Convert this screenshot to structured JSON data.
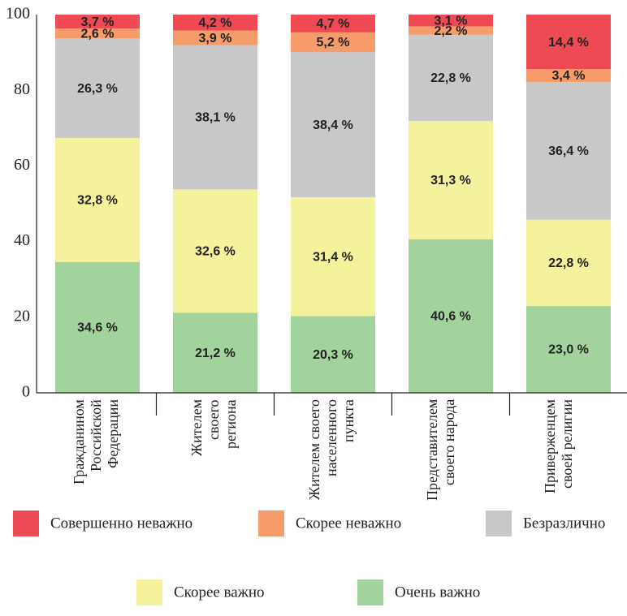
{
  "chart_data": {
    "type": "stacked_bar",
    "categories": [
      "Гражданином\nРоссийской\nФедерации",
      "Жителем\nсвоего\nрегиона",
      "Жителем своего\nнаселенного\nпункта",
      "Представителем\nсвоего народа",
      "Приверженцем\nсвоей религии"
    ],
    "series": [
      {
        "name": "Очень важно",
        "color": "#a3d39c",
        "values": [
          34.6,
          21.2,
          20.3,
          40.6,
          23.0
        ],
        "value_labels": [
          "34,6 %",
          "21,2 %",
          "20,3 %",
          "40,6 %",
          "23,0 %"
        ]
      },
      {
        "name": "Скорее важно",
        "color": "#f5f29e",
        "values": [
          32.8,
          32.6,
          31.4,
          31.3,
          22.8
        ],
        "value_labels": [
          "32,8 %",
          "32,6 %",
          "31,4 %",
          "31,3 %",
          "22,8 %"
        ]
      },
      {
        "name": "Безразлично",
        "color": "#c8c8c8",
        "values": [
          26.3,
          38.1,
          38.4,
          22.8,
          36.4
        ],
        "value_labels": [
          "26,3 %",
          "38,1 %",
          "38,4 %",
          "22,8 %",
          "36,4 %"
        ]
      },
      {
        "name": "Скорее неважно",
        "color": "#f59c6a",
        "values": [
          2.6,
          3.9,
          5.2,
          2.2,
          3.4
        ],
        "value_labels": [
          "2,6 %",
          "3,9 %",
          "5,2 %",
          "2,2 %",
          "3,4 %"
        ]
      },
      {
        "name": "Совершенно неважно",
        "color": "#ee4a53",
        "values": [
          3.7,
          4.2,
          4.7,
          3.1,
          14.4
        ],
        "value_labels": [
          "3,7 %",
          "4,2 %",
          "4,7 %",
          "3,1 %",
          "14,4 %"
        ]
      }
    ],
    "ylim": [
      0,
      100
    ],
    "yticks": [
      0,
      20,
      40,
      60,
      80,
      100
    ],
    "grid": false
  }
}
